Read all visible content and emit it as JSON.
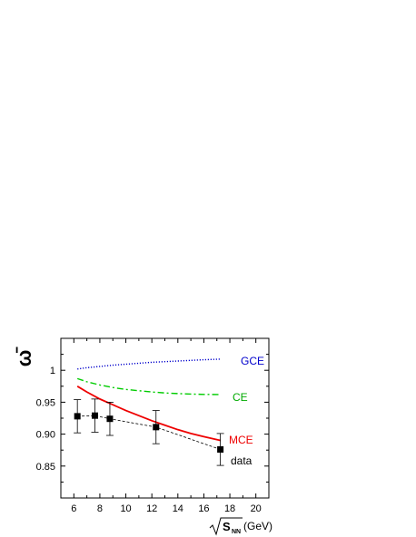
{
  "chart_data": {
    "type": "line",
    "xlim": [
      5,
      21
    ],
    "ylim": [
      0.8,
      1.05
    ],
    "x_ticks": [
      6,
      8,
      10,
      12,
      14,
      16,
      18,
      20
    ],
    "x_tick_labels": [
      "6",
      "8",
      "10",
      "12",
      "14",
      "16",
      "18",
      "20"
    ],
    "y_ticks": [
      0.85,
      0.9,
      0.95,
      1.0
    ],
    "y_tick_labels": [
      "0.85",
      "0.90",
      "0.95",
      "1"
    ],
    "ylabel": "ω̄",
    "xlabel": {
      "symbol": "S",
      "subscript": "NN",
      "unit": " (GeV)"
    },
    "series": [
      {
        "name": "GCE",
        "color": "#0000cc",
        "style": "dotted",
        "x": [
          6.27,
          7.0,
          8.0,
          9.0,
          10.0,
          11.0,
          12.0,
          13.0,
          14.0,
          15.0,
          16.0,
          17.3
        ],
        "y": [
          1.002,
          1.004,
          1.006,
          1.008,
          1.0095,
          1.011,
          1.0125,
          1.0135,
          1.0145,
          1.0155,
          1.0165,
          1.0175
        ]
      },
      {
        "name": "CE",
        "color": "#00cc00",
        "style": "dashdot",
        "x": [
          6.27,
          7.0,
          8.0,
          9.0,
          10.0,
          11.0,
          12.0,
          13.0,
          14.0,
          15.0,
          16.0,
          17.3
        ],
        "y": [
          0.987,
          0.982,
          0.977,
          0.973,
          0.97,
          0.968,
          0.966,
          0.9645,
          0.9635,
          0.9628,
          0.9622,
          0.962
        ]
      },
      {
        "name": "MCE",
        "color": "#ee0000",
        "style": "solid",
        "x": [
          6.27,
          7.0,
          8.0,
          9.0,
          10.0,
          11.0,
          12.0,
          13.0,
          14.0,
          15.0,
          16.0,
          17.3
        ],
        "y": [
          0.975,
          0.966,
          0.955,
          0.946,
          0.937,
          0.929,
          0.921,
          0.914,
          0.907,
          0.901,
          0.896,
          0.89
        ]
      },
      {
        "name": "data",
        "color": "#000000",
        "style": "points",
        "x": [
          6.27,
          7.62,
          8.77,
          12.32,
          17.27
        ],
        "y": [
          0.928,
          0.929,
          0.924,
          0.911,
          0.876
        ],
        "err": [
          0.026,
          0.026,
          0.026,
          0.026,
          0.025
        ]
      }
    ],
    "legend_labels": [
      {
        "text": "GCE",
        "color": "#0000cc"
      },
      {
        "text": "CE",
        "color": "#00aa00"
      },
      {
        "text": "MCE",
        "color": "#ee0000"
      },
      {
        "text": "data",
        "color": "#000000"
      }
    ]
  }
}
